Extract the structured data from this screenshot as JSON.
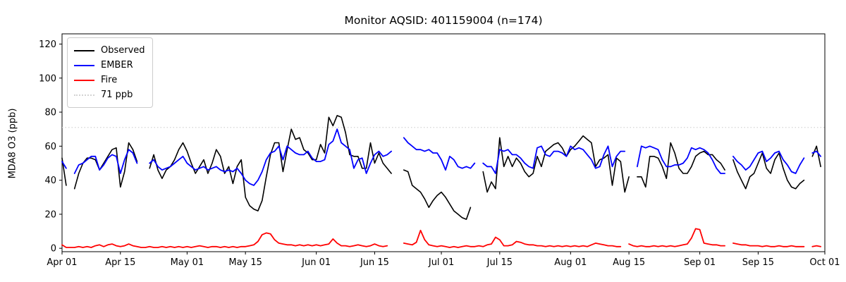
{
  "figure": {
    "title": "Monitor AQSID: 401159004 (n=174)"
  },
  "chart_data": {
    "type": "line",
    "title": "Monitor AQSID: 401159004 (n=174)",
    "xlabel": "",
    "ylabel": "MDA8 O3 (ppb)",
    "x_start": "Apr 01",
    "x_end": "Oct 01",
    "x_range_days": [
      0,
      183
    ],
    "ylim": [
      -2,
      126
    ],
    "grid": false,
    "y_ticks": [
      0,
      20,
      40,
      60,
      80,
      100,
      120
    ],
    "x_ticks": [
      {
        "label": "Apr 01",
        "day": 0
      },
      {
        "label": "Apr 15",
        "day": 14
      },
      {
        "label": "May 01",
        "day": 30
      },
      {
        "label": "May 15",
        "day": 44
      },
      {
        "label": "Jun 01",
        "day": 61
      },
      {
        "label": "Jun 15",
        "day": 75
      },
      {
        "label": "Jul 01",
        "day": 91
      },
      {
        "label": "Jul 15",
        "day": 105
      },
      {
        "label": "Aug 01",
        "day": 122
      },
      {
        "label": "Aug 15",
        "day": 136
      },
      {
        "label": "Sep 01",
        "day": 153
      },
      {
        "label": "Sep 15",
        "day": 167
      },
      {
        "label": "Oct 01",
        "day": 183
      }
    ],
    "threshold": {
      "label": "71 ppb",
      "value": 71,
      "color": "#d3d3d3",
      "style": "dotted"
    },
    "legend": {
      "position": "upper-left",
      "entries": [
        {
          "label": "Observed",
          "color": "#000000",
          "style": "solid"
        },
        {
          "label": "EMBER",
          "color": "#0000ff",
          "style": "solid"
        },
        {
          "label": "Fire",
          "color": "#ff0000",
          "style": "solid"
        },
        {
          "label": "71 ppb",
          "color": "#d3d3d3",
          "style": "dotted"
        }
      ]
    },
    "series": [
      {
        "name": "Observed",
        "color": "#000000",
        "line_width": 1.6,
        "values": [
          53,
          37,
          null,
          35,
          44,
          50,
          53,
          53,
          52,
          46,
          50,
          54,
          58,
          59,
          36,
          45,
          62,
          58,
          51,
          null,
          null,
          47,
          55,
          46,
          41,
          46,
          48,
          52,
          58,
          62,
          57,
          50,
          44,
          48,
          52,
          44,
          50,
          58,
          54,
          44,
          48,
          38,
          48,
          52,
          30,
          25,
          23,
          22,
          28,
          42,
          55,
          62,
          62,
          45,
          58,
          70,
          64,
          65,
          58,
          56,
          52,
          52,
          61,
          56,
          77,
          72,
          78,
          77,
          68,
          55,
          54,
          54,
          47,
          47,
          62,
          50,
          56,
          50,
          47,
          44,
          null,
          null,
          46,
          45,
          37,
          35,
          33,
          29,
          24,
          28,
          31,
          33,
          30,
          26,
          22,
          20,
          18,
          17,
          24,
          null,
          null,
          45,
          33,
          39,
          35,
          65,
          48,
          54,
          48,
          53,
          50,
          45,
          42,
          44,
          54,
          48,
          57,
          59,
          61,
          62,
          59,
          54,
          58,
          60,
          63,
          66,
          64,
          62,
          48,
          52,
          53,
          55,
          37,
          53,
          51,
          33,
          42,
          null,
          42,
          42,
          36,
          54,
          54,
          53,
          48,
          41,
          62,
          56,
          47,
          44,
          44,
          48,
          54,
          56,
          57,
          55,
          55,
          52,
          50,
          46,
          null,
          52,
          45,
          40,
          35,
          42,
          44,
          50,
          56,
          47,
          44,
          52,
          56,
          47,
          40,
          36,
          35,
          38,
          40,
          null,
          54,
          60,
          48
        ]
      },
      {
        "name": "EMBER",
        "color": "#0000ff",
        "line_width": 1.8,
        "values": [
          51,
          47,
          null,
          44,
          49,
          50,
          52,
          54,
          54,
          46,
          49,
          53,
          55,
          54,
          44,
          52,
          58,
          56,
          50,
          null,
          null,
          50,
          52,
          48,
          46,
          47,
          48,
          50,
          52,
          54,
          50,
          48,
          46,
          47,
          48,
          46,
          47,
          48,
          46,
          45,
          46,
          45,
          47,
          44,
          40,
          38,
          37,
          40,
          45,
          52,
          56,
          57,
          60,
          52,
          60,
          58,
          56,
          55,
          55,
          57,
          53,
          51,
          51,
          52,
          61,
          63,
          70,
          62,
          60,
          58,
          47,
          52,
          53,
          44,
          50,
          55,
          57,
          54,
          55,
          57,
          null,
          null,
          65,
          62,
          60,
          58,
          58,
          57,
          58,
          56,
          56,
          52,
          46,
          54,
          52,
          48,
          47,
          48,
          47,
          50,
          null,
          50,
          48,
          48,
          44,
          58,
          57,
          58,
          55,
          55,
          53,
          50,
          48,
          47,
          59,
          60,
          55,
          54,
          57,
          57,
          56,
          54,
          60,
          58,
          59,
          58,
          55,
          52,
          47,
          48,
          55,
          60,
          48,
          54,
          57,
          57,
          null,
          null,
          48,
          60,
          59,
          60,
          59,
          58,
          52,
          48,
          48,
          49,
          49,
          50,
          53,
          59,
          58,
          59,
          58,
          56,
          52,
          47,
          44,
          44,
          null,
          54,
          51,
          49,
          46,
          48,
          52,
          56,
          57,
          51,
          53,
          56,
          57,
          52,
          49,
          45,
          44,
          49,
          53,
          null,
          56,
          57,
          54
        ]
      },
      {
        "name": "Fire",
        "color": "#ff0000",
        "line_width": 1.8,
        "values": [
          2,
          0.5,
          0.5,
          0.5,
          1,
          0.5,
          1,
          0.5,
          1.5,
          2,
          1,
          2,
          2.5,
          1.5,
          1,
          1.5,
          2.5,
          1.5,
          1,
          0.5,
          0.5,
          1,
          0.5,
          0.5,
          1,
          0.5,
          1,
          0.5,
          1,
          0.5,
          1,
          0.5,
          1,
          1.5,
          1,
          0.5,
          1,
          1,
          0.5,
          1,
          0.5,
          1,
          0.5,
          1,
          1,
          1.5,
          2,
          4,
          8,
          9,
          8.5,
          5,
          3,
          2.5,
          2,
          2,
          1.5,
          2,
          1.5,
          2,
          1.5,
          2,
          1.5,
          2,
          2.5,
          5.5,
          3,
          1.5,
          1.5,
          1,
          1.5,
          2,
          1.5,
          1,
          1.5,
          2.5,
          1.5,
          1,
          1.5,
          null,
          null,
          null,
          3,
          2.5,
          2,
          3.5,
          10.5,
          5,
          2,
          1.5,
          1,
          1.5,
          1,
          0.5,
          1,
          0.5,
          1,
          1.5,
          1,
          1,
          1.5,
          1,
          2,
          2.5,
          6.5,
          5,
          1.5,
          1.5,
          2,
          4,
          3.5,
          2.5,
          2,
          2,
          1.5,
          1.5,
          1,
          1.5,
          1,
          1.5,
          1,
          1.5,
          1,
          1.5,
          1,
          1.5,
          1,
          2,
          3,
          2.5,
          2,
          1.5,
          1.5,
          1,
          1,
          null,
          2.5,
          1.5,
          1,
          1.5,
          1,
          1,
          1.5,
          1,
          1.5,
          1,
          1.5,
          1,
          1.5,
          2,
          2.5,
          6,
          11.5,
          11,
          3,
          2.5,
          2,
          2,
          1.5,
          1.5,
          null,
          3,
          2.5,
          2,
          2,
          1.5,
          1.5,
          1.5,
          1,
          1.5,
          1,
          1,
          1.5,
          1,
          1,
          1.5,
          1,
          1,
          1,
          null,
          1,
          1.5,
          1
        ]
      }
    ]
  }
}
